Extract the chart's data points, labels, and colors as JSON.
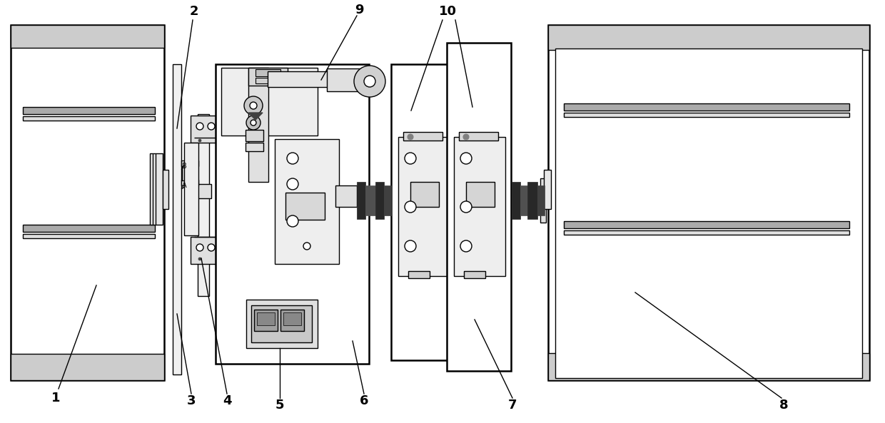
{
  "bg_color": "#ffffff",
  "lw": 1.0,
  "tlw": 1.8
}
